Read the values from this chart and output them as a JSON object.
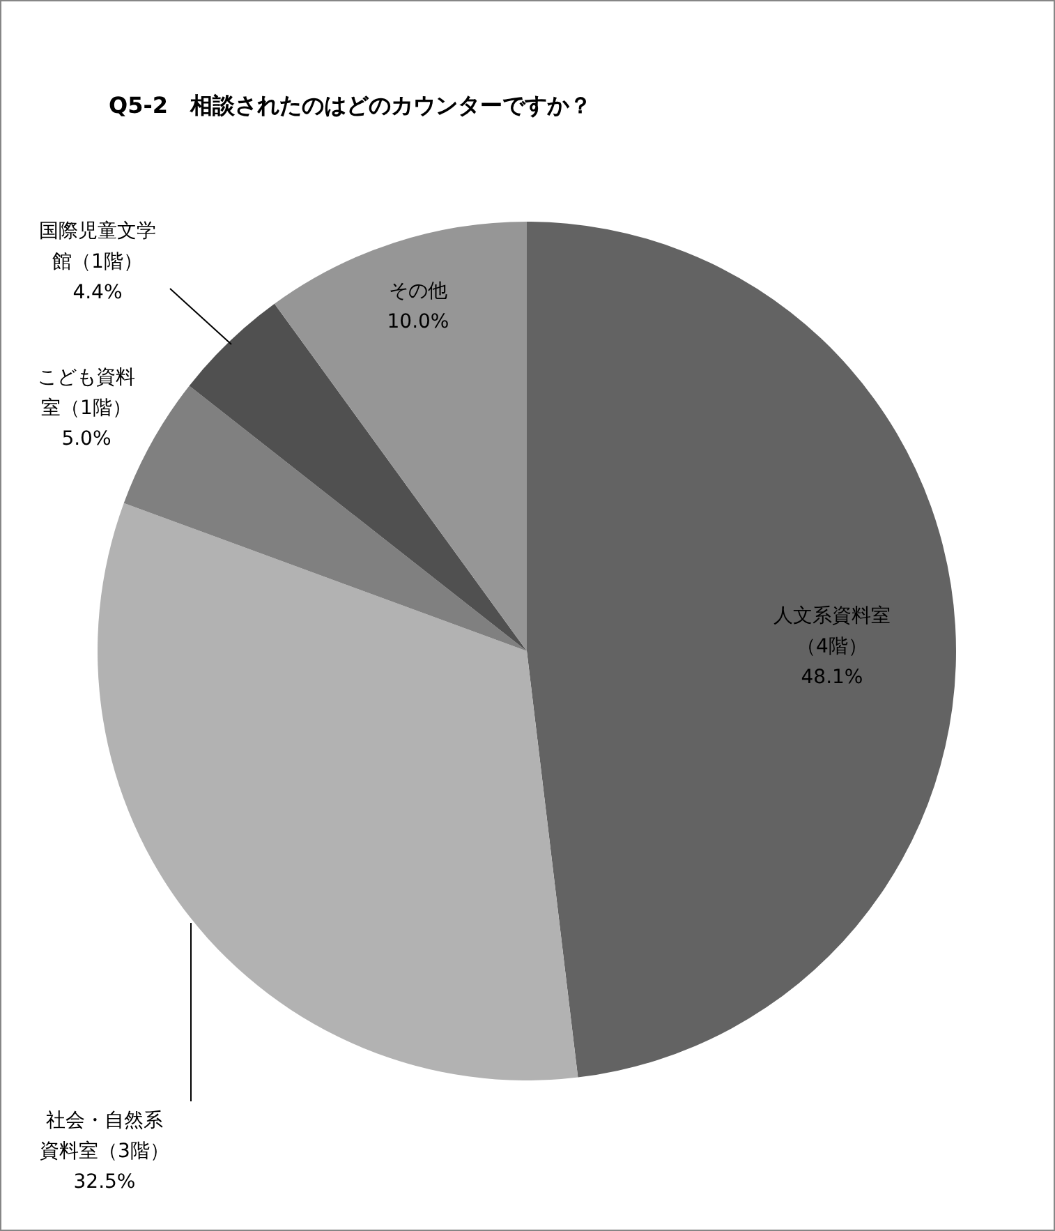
{
  "chart_data": {
    "type": "pie",
    "title": "Q5-2　相談されたのはどのカウンターですか？",
    "categories": [
      "人文系資料室（4階）",
      "社会・自然系資料室（3階）",
      "こども資料室（1階）",
      "国際児童文学館（1階）",
      "その他"
    ],
    "values": [
      48.1,
      32.5,
      5.0,
      4.4,
      10.0
    ],
    "value_labels": [
      "48.1%",
      "32.5%",
      "5.0%",
      "4.4%",
      "10.0%"
    ],
    "colors": [
      "#636363",
      "#b2b2b2",
      "#808080",
      "#505050",
      "#969696"
    ],
    "legend": false
  }
}
